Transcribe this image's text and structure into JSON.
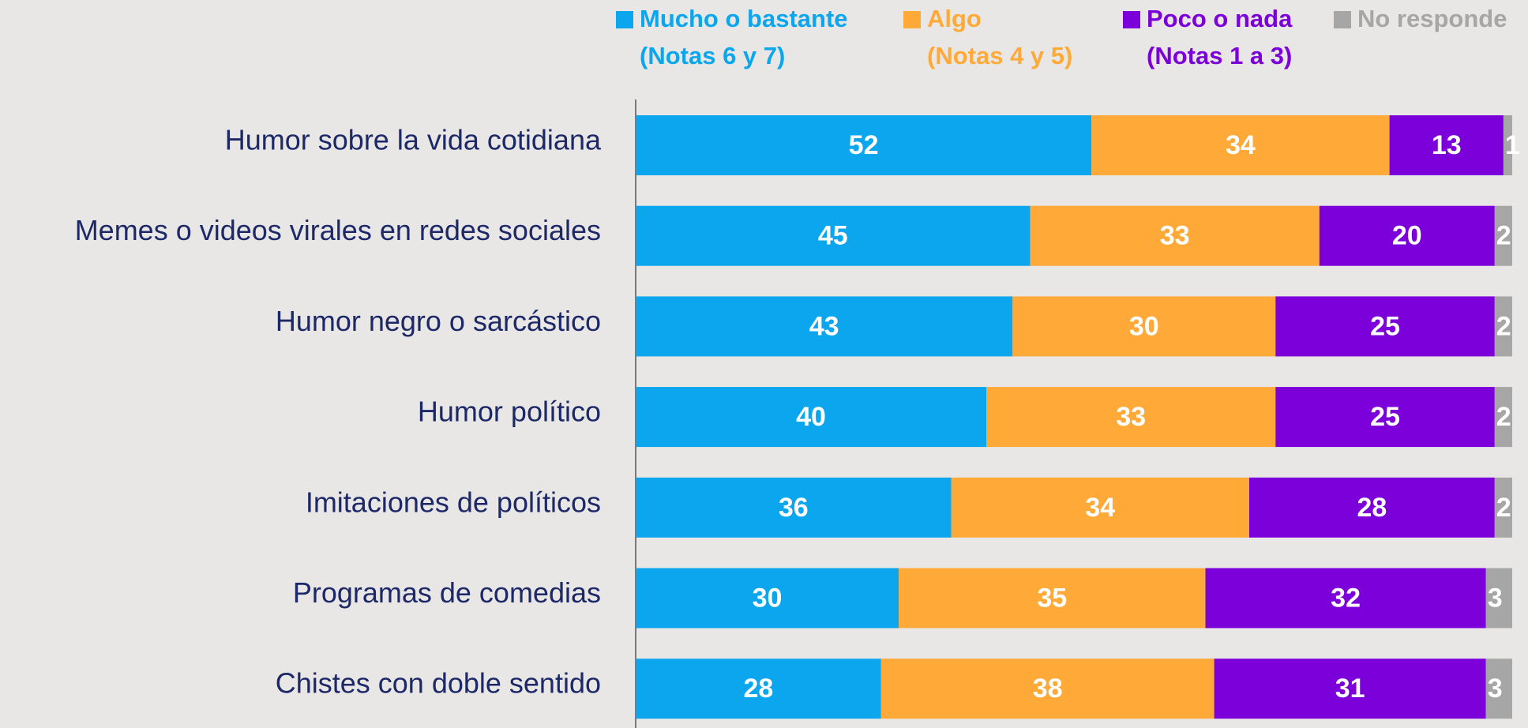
{
  "chart_data": {
    "type": "stacked_barh",
    "categories": [
      "Humor sobre la vida cotidiana",
      "Memes o videos virales en redes sociales",
      "Humor negro o sarcástico",
      "Humor político",
      "Imitaciones de políticos",
      "Programas de comedias",
      "Chistes con doble sentido"
    ],
    "series": [
      {
        "name": "Mucho o bastante",
        "note": "(Notas 6 y 7)",
        "color": "#0ba6ee",
        "values": [
          52,
          45,
          43,
          40,
          36,
          30,
          28
        ]
      },
      {
        "name": "Algo",
        "note": "(Notas 4 y 5)",
        "color": "#ffaa38",
        "values": [
          34,
          33,
          30,
          33,
          34,
          35,
          38
        ]
      },
      {
        "name": "Poco o nada",
        "note": "(Notas 1 a 3)",
        "color": "#7b00d9",
        "values": [
          13,
          20,
          25,
          25,
          28,
          32,
          31
        ]
      },
      {
        "name": "No responde",
        "color": "#a6a6a6",
        "values": [
          1,
          2,
          2,
          2,
          2,
          3,
          3
        ]
      }
    ],
    "xlim": [
      0,
      100
    ]
  }
}
